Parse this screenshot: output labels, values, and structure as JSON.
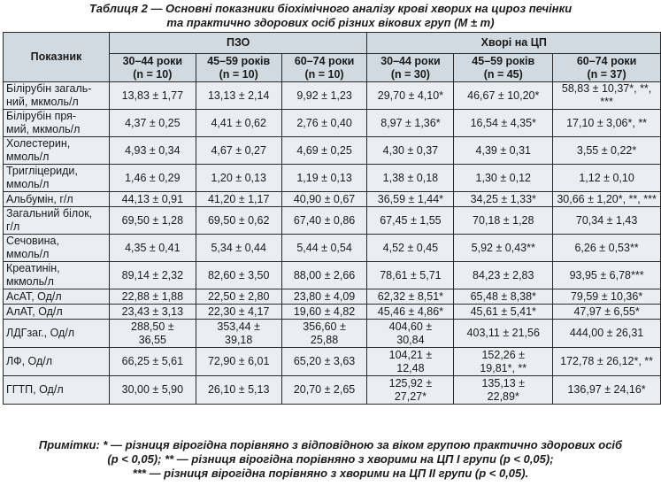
{
  "caption": {
    "line1": "Таблиця 2 — Основні показники біохімічного аналізу крові хворих на цироз печінки",
    "line2": "та практично здорових осіб різних вікових груп (M ± m)"
  },
  "table": {
    "corner_label": "Показник",
    "groups": [
      "ПЗО",
      "Хворі на ЦП"
    ],
    "columns": [
      {
        "age": "30–44 роки",
        "n": "(n = 10)"
      },
      {
        "age": "45–59 років",
        "n": "(n = 10)"
      },
      {
        "age": "60–74 роки",
        "n": "(n = 10)"
      },
      {
        "age": "30–44 роки",
        "n": "(n = 30)"
      },
      {
        "age": "45–59 років",
        "n": "(n = 45)"
      },
      {
        "age": "60–74 роки",
        "n": "(n = 37)"
      }
    ],
    "rows": [
      {
        "label": [
          "Білірубін загаль-",
          "ний, мкмоль/л"
        ],
        "values": [
          [
            "13,83 ± 1,77"
          ],
          [
            "13,13 ± 2,14"
          ],
          [
            "9,92 ± 1,23"
          ],
          [
            "29,70 ± 4,10*"
          ],
          [
            "46,67 ± 10,20*"
          ],
          [
            "58,83 ± 10,37*, **, ***"
          ]
        ]
      },
      {
        "label": [
          "Білірубін пря-",
          "мий, мкмоль/л"
        ],
        "values": [
          [
            "4,37 ± 0,25"
          ],
          [
            "4,41 ± 0,62"
          ],
          [
            "2,76 ± 0,40"
          ],
          [
            "8,97 ± 1,36*"
          ],
          [
            "16,54 ± 4,35*"
          ],
          [
            "17,10 ± 3,06*, **"
          ]
        ]
      },
      {
        "label": [
          "Холестерин,",
          "ммоль/л"
        ],
        "values": [
          [
            "4,93 ± 0,34"
          ],
          [
            "4,67 ± 0,27"
          ],
          [
            "4,69 ± 0,25"
          ],
          [
            "4,30 ± 0,37"
          ],
          [
            "4,39 ± 0,31"
          ],
          [
            "3,55 ± 0,22*"
          ]
        ]
      },
      {
        "label": [
          "Тригліцериди,",
          "ммоль/л"
        ],
        "values": [
          [
            "1,46 ± 0,29"
          ],
          [
            "1,20 ± 0,13"
          ],
          [
            "1,19 ± 0,13"
          ],
          [
            "1,38 ± 0,18"
          ],
          [
            "1,30 ± 0,12"
          ],
          [
            "1,12 ± 0,10"
          ]
        ]
      },
      {
        "label": [
          "Альбумін, г/л"
        ],
        "values": [
          [
            "44,13 ± 0,91"
          ],
          [
            "41,20 ± 1,17"
          ],
          [
            "40,90 ± 0,67"
          ],
          [
            "36,59 ± 1,44*"
          ],
          [
            "34,25 ± 1,33*"
          ],
          [
            "30,66 ± 1,20*, **, ***"
          ]
        ]
      },
      {
        "label": [
          "Загальний білок,",
          "г/л"
        ],
        "values": [
          [
            "69,50 ± 1,28"
          ],
          [
            "69,50 ± 0,62"
          ],
          [
            "67,40 ± 0,86"
          ],
          [
            "67,45 ± 1,55"
          ],
          [
            "70,18 ± 1,28"
          ],
          [
            "70,34 ± 1,43"
          ]
        ]
      },
      {
        "label": [
          "Сечовина,",
          "ммоль/л"
        ],
        "values": [
          [
            "4,35 ± 0,41"
          ],
          [
            "5,34 ± 0,44"
          ],
          [
            "5,44 ± 0,54"
          ],
          [
            "4,52 ± 0,45"
          ],
          [
            "5,92 ± 0,43**"
          ],
          [
            "6,26 ± 0,53**"
          ]
        ]
      },
      {
        "label": [
          "Креатинін,",
          "мкмоль/л"
        ],
        "values": [
          [
            "89,14 ± 2,32"
          ],
          [
            "82,60 ± 3,50"
          ],
          [
            "88,00 ± 2,66"
          ],
          [
            "78,61 ± 5,71"
          ],
          [
            "84,23 ± 2,83"
          ],
          [
            "93,95 ± 6,78***"
          ]
        ]
      },
      {
        "label": [
          "АсАТ, Од/л"
        ],
        "values": [
          [
            "22,88 ± 1,88"
          ],
          [
            "22,50 ± 2,80"
          ],
          [
            "23,80 ± 4,09"
          ],
          [
            "62,32 ± 8,51*"
          ],
          [
            "65,48 ± 8,38*"
          ],
          [
            "79,59 ± 10,36*"
          ]
        ]
      },
      {
        "label": [
          "АлАТ, Од/л"
        ],
        "values": [
          [
            "23,43 ± 3,13"
          ],
          [
            "22,30 ± 4,17"
          ],
          [
            "19,60 ± 4,82"
          ],
          [
            "45,46 ± 4,86*"
          ],
          [
            "45,61 ± 5,41*"
          ],
          [
            "47,97 ± 6,55*"
          ]
        ]
      },
      {
        "label": [
          "ЛДГзаг., Од/л"
        ],
        "values": [
          [
            "288,50 ±",
            "36,55"
          ],
          [
            "353,44 ±",
            "39,18"
          ],
          [
            "356,60 ±",
            "25,88"
          ],
          [
            "404,60 ±",
            "30,84"
          ],
          [
            "403,11 ± 21,56"
          ],
          [
            "444,00 ± 26,31"
          ]
        ]
      },
      {
        "label": [
          "ЛФ, Од/л"
        ],
        "values": [
          [
            "66,25 ± 5,61"
          ],
          [
            "72,90 ± 6,01"
          ],
          [
            "65,20 ± 3,63"
          ],
          [
            "104,21 ±",
            "12,48"
          ],
          [
            "152,26 ±",
            "19,81*, **"
          ],
          [
            "172,78 ± 26,12*, **"
          ]
        ]
      },
      {
        "label": [
          "ГГТП, Од/л"
        ],
        "values": [
          [
            "30,00 ± 5,90"
          ],
          [
            "26,10 ± 5,13"
          ],
          [
            "20,70 ± 2,65"
          ],
          [
            "125,92 ±",
            "27,27*"
          ],
          [
            "135,13 ±",
            "22,89*"
          ],
          [
            "136,97 ± 24,16*"
          ]
        ]
      }
    ]
  },
  "notes": {
    "line1": "Примітки: * — різниця вірогідна порівняно з відповідною за віком групою практично здорових осіб",
    "line2": "(p < 0,05); ** — різниця вірогідна порівняно з хворими на ЦП I групи (p < 0,05);",
    "line3": "*** — різниця вірогідна порівняно з хворими на ЦП II групи (p < 0,05)."
  }
}
